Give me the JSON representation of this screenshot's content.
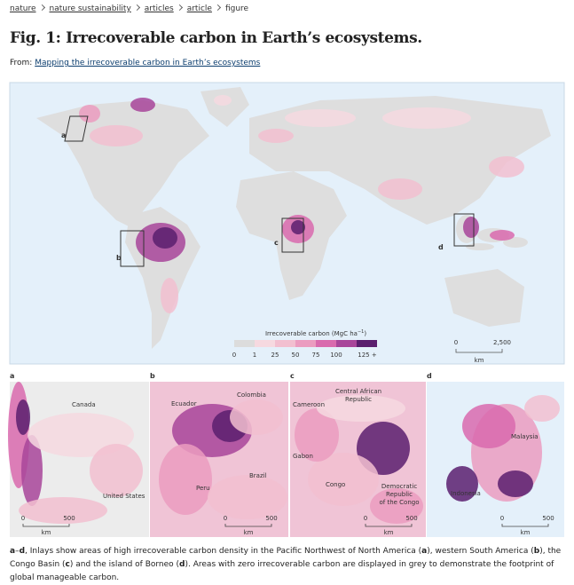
{
  "breadcrumb": [
    "nature",
    "nature sustainability",
    "articles",
    "article",
    "figure"
  ],
  "title": "Fig. 1: Irrecoverable carbon in Earth’s ecosystems.",
  "source": {
    "prefix": "From:",
    "link": "Mapping the irrecoverable carbon in Earth’s ecosystems"
  },
  "map": {
    "inset_markers": [
      "a",
      "b",
      "c",
      "d"
    ],
    "legend": {
      "title": "Irrecoverable carbon (MgC ha",
      "title_sup": "−1",
      "title_end": ")",
      "labels": [
        "0",
        "1",
        "25",
        "50",
        "75",
        "100",
        "125 +"
      ],
      "colors": [
        "#dcdcdc",
        "#f6d9e0",
        "#f2bfd0",
        "#eb9cc0",
        "#d96aae",
        "#a8459a",
        "#5a1e6e"
      ]
    },
    "scale": {
      "labels": [
        "0",
        "2,500"
      ],
      "unit": "km"
    }
  },
  "panels": [
    {
      "letter": "a",
      "places": [
        [
          "Canada"
        ],
        [
          "United States"
        ]
      ],
      "scale": [
        "0",
        "500"
      ],
      "unit": "km"
    },
    {
      "letter": "b",
      "places": [
        [
          "Ecuador"
        ],
        [
          "Colombia"
        ],
        [
          "Brazil"
        ],
        [
          "Peru"
        ]
      ],
      "scale": [
        "0",
        "500"
      ],
      "unit": "km"
    },
    {
      "letter": "c",
      "places": [
        [
          "Cameroon"
        ],
        [
          "Central African",
          "Republic"
        ],
        [
          "Gabon"
        ],
        [
          "Congo"
        ],
        [
          "Democratic",
          "Republic",
          "of the Congo"
        ]
      ],
      "scale": [
        "0",
        "500"
      ],
      "unit": "km"
    },
    {
      "letter": "d",
      "places": [
        [
          "Malaysia"
        ],
        [
          "Indonesia"
        ]
      ],
      "scale": [
        "0",
        "500"
      ],
      "unit": "km"
    }
  ],
  "caption": [
    {
      "text": "a",
      "bold": true
    },
    {
      "text": "–"
    },
    {
      "text": "d",
      "bold": true
    },
    {
      "text": ", Inlays show areas of high irrecoverable carbon density in the Pacific Northwest of North America ("
    },
    {
      "text": "a",
      "bold": true
    },
    {
      "text": "), western South America ("
    },
    {
      "text": "b",
      "bold": true
    },
    {
      "text": "), the Congo Basin ("
    },
    {
      "text": "c",
      "bold": true
    },
    {
      "text": ") and the island of Borneo ("
    },
    {
      "text": "d",
      "bold": true
    },
    {
      "text": "). Areas with zero irrecoverable carbon are displayed in grey to demonstrate the footprint of global manageable carbon."
    }
  ]
}
